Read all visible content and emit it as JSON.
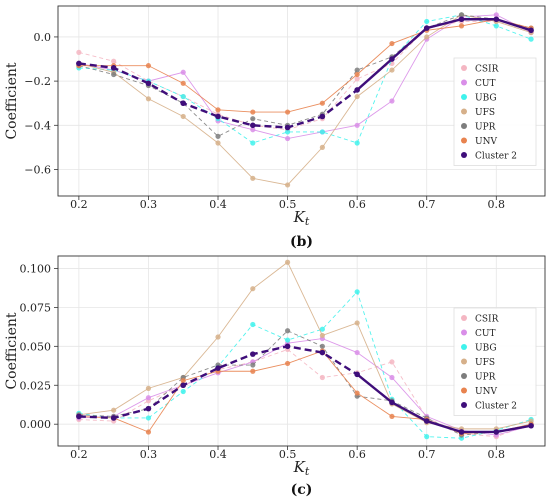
{
  "chart_data": [
    {
      "type": "line",
      "panel_label": "(b)",
      "ylabel": "Coefficient",
      "xlabel": "K_t",
      "xlim": [
        0.17,
        0.87
      ],
      "ylim": [
        -0.72,
        0.14
      ],
      "xticks": [
        0.2,
        0.3,
        0.4,
        0.5,
        0.6,
        0.7,
        0.8
      ],
      "yticks": [
        0.0,
        -0.2,
        -0.4,
        -0.6
      ],
      "ytick_labels": [
        "0.0",
        "−0.2",
        "−0.4",
        "−0.6"
      ],
      "grid": true,
      "legend_position": "right",
      "legend": [
        "CSIR",
        "CUT",
        "UBG",
        "UFS",
        "UPR",
        "UNV",
        "Cluster 2"
      ],
      "x": [
        0.2,
        0.25,
        0.3,
        0.35,
        0.4,
        0.45,
        0.5,
        0.55,
        0.6,
        0.65,
        0.7,
        0.75,
        0.8,
        0.85
      ],
      "series": [
        {
          "name": "CSIR",
          "color": "#f4b6c2",
          "values": [
            -0.07,
            -0.11,
            -0.2,
            -0.27,
            -0.35,
            -0.4,
            -0.42,
            -0.37,
            -0.19,
            -0.12,
            0.04,
            0.07,
            0.07,
            0.02
          ]
        },
        {
          "name": "CUT",
          "color": "#d98ee8",
          "values": [
            -0.12,
            -0.15,
            -0.2,
            -0.16,
            -0.38,
            -0.42,
            -0.46,
            -0.43,
            -0.4,
            -0.29,
            -0.01,
            0.09,
            0.1,
            0.02
          ]
        },
        {
          "name": "UBG",
          "color": "#3ff2ec",
          "values": [
            -0.14,
            -0.15,
            -0.2,
            -0.27,
            -0.37,
            -0.48,
            -0.43,
            -0.43,
            -0.48,
            -0.1,
            0.07,
            0.1,
            0.05,
            -0.01
          ]
        },
        {
          "name": "UFS",
          "color": "#d6b08a",
          "values": [
            -0.12,
            -0.16,
            -0.28,
            -0.36,
            -0.48,
            -0.64,
            -0.67,
            -0.5,
            -0.27,
            -0.15,
            0.0,
            0.1,
            0.07,
            0.02
          ]
        },
        {
          "name": "UPR",
          "color": "#7d7d7d",
          "values": [
            -0.13,
            -0.17,
            -0.22,
            -0.3,
            -0.45,
            -0.37,
            -0.4,
            -0.35,
            -0.15,
            -0.09,
            0.04,
            0.1,
            0.08,
            0.04
          ]
        },
        {
          "name": "UNV",
          "color": "#e8834f",
          "values": [
            -0.13,
            -0.13,
            -0.13,
            -0.21,
            -0.33,
            -0.34,
            -0.34,
            -0.3,
            -0.17,
            -0.03,
            0.03,
            0.05,
            0.08,
            0.04
          ]
        },
        {
          "name": "Cluster 2",
          "color": "#3f0e7a",
          "values": [
            -0.12,
            -0.14,
            -0.21,
            -0.3,
            -0.36,
            -0.4,
            -0.41,
            -0.36,
            -0.24,
            -0.1,
            0.04,
            0.08,
            0.08,
            0.03
          ]
        }
      ]
    },
    {
      "type": "line",
      "panel_label": "(c)",
      "ylabel": "Coefficient",
      "xlabel": "K_t",
      "xlim": [
        0.17,
        0.87
      ],
      "ylim": [
        -0.014,
        0.108
      ],
      "xticks": [
        0.2,
        0.3,
        0.4,
        0.5,
        0.6,
        0.7,
        0.8
      ],
      "yticks": [
        0.0,
        0.025,
        0.05,
        0.075,
        0.1
      ],
      "ytick_labels": [
        "0.000",
        "0.025",
        "0.050",
        "0.075",
        "0.100"
      ],
      "grid": true,
      "legend_position": "right",
      "legend": [
        "CSIR",
        "CUT",
        "UBG",
        "UFS",
        "UPR",
        "UNV",
        "Cluster 2"
      ],
      "x": [
        0.2,
        0.25,
        0.3,
        0.35,
        0.4,
        0.45,
        0.5,
        0.55,
        0.6,
        0.65,
        0.7,
        0.75,
        0.8,
        0.85
      ],
      "series": [
        {
          "name": "CSIR",
          "color": "#f4b6c2",
          "values": [
            0.003,
            0.002,
            0.015,
            0.025,
            0.035,
            0.04,
            0.048,
            0.03,
            0.033,
            0.04,
            0.004,
            -0.006,
            -0.008,
            0.0
          ]
        },
        {
          "name": "CUT",
          "color": "#d98ee8",
          "values": [
            0.004,
            0.005,
            0.017,
            0.025,
            0.033,
            0.04,
            0.052,
            0.055,
            0.046,
            0.03,
            0.005,
            -0.004,
            -0.007,
            -0.001
          ]
        },
        {
          "name": "UBG",
          "color": "#3ff2ec",
          "values": [
            0.007,
            0.004,
            0.004,
            0.021,
            0.037,
            0.064,
            0.054,
            0.061,
            0.085,
            0.016,
            -0.008,
            -0.009,
            -0.004,
            0.003
          ]
        },
        {
          "name": "UFS",
          "color": "#d6b08a",
          "values": [
            0.006,
            0.009,
            0.023,
            0.03,
            0.056,
            0.087,
            0.104,
            0.057,
            0.065,
            0.013,
            0.001,
            -0.003,
            -0.003,
            0.002
          ]
        },
        {
          "name": "UPR",
          "color": "#7d7d7d",
          "values": [
            0.006,
            0.005,
            0.01,
            0.03,
            0.038,
            0.038,
            0.06,
            0.05,
            0.018,
            0.015,
            0.004,
            -0.007,
            -0.005,
            0.0
          ]
        },
        {
          "name": "UNV",
          "color": "#e8834f",
          "values": [
            0.005,
            0.004,
            -0.005,
            0.028,
            0.034,
            0.034,
            0.039,
            0.047,
            0.02,
            0.005,
            0.003,
            -0.006,
            -0.005,
            0.0
          ]
        },
        {
          "name": "Cluster 2",
          "color": "#3f0e7a",
          "values": [
            0.005,
            0.004,
            0.01,
            0.025,
            0.036,
            0.045,
            0.05,
            0.046,
            0.032,
            0.014,
            0.002,
            -0.005,
            -0.005,
            -0.001
          ]
        }
      ]
    }
  ]
}
